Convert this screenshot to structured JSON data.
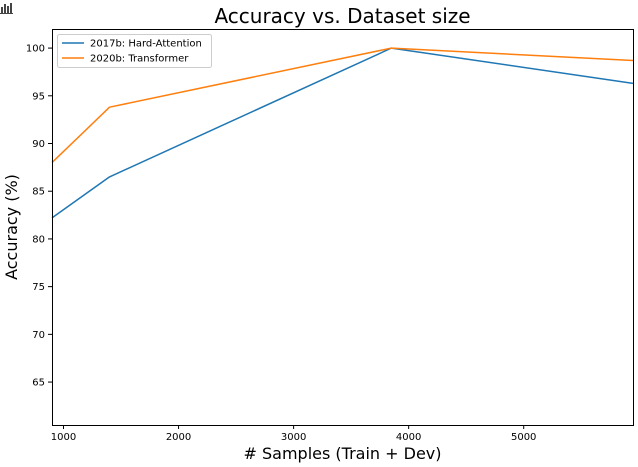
{
  "toolbar": {
    "icon": "bar-chart-icon"
  },
  "chart_data": {
    "type": "line",
    "title": "Accuracy vs. Dataset size",
    "xlabel": "# Samples (Train + Dev)",
    "ylabel": "Accuracy (%)",
    "xlim": [
      900,
      5950
    ],
    "ylim": [
      60.5,
      102
    ],
    "xticks": [
      1000,
      2000,
      3000,
      4000,
      5000
    ],
    "yticks": [
      65,
      70,
      75,
      80,
      85,
      90,
      95,
      100
    ],
    "grid": false,
    "legend": "top-left",
    "series": [
      {
        "name": "2017b: Hard-Attention",
        "color": "#1f77b4",
        "x": [
          900,
          1400,
          3850,
          5950
        ],
        "y": [
          82.2,
          86.5,
          100.0,
          96.3
        ]
      },
      {
        "name": "2020b: Transformer",
        "color": "#ff7f0e",
        "x": [
          900,
          1400,
          3850,
          5950
        ],
        "y": [
          88.0,
          93.8,
          100.0,
          98.7
        ]
      }
    ]
  }
}
